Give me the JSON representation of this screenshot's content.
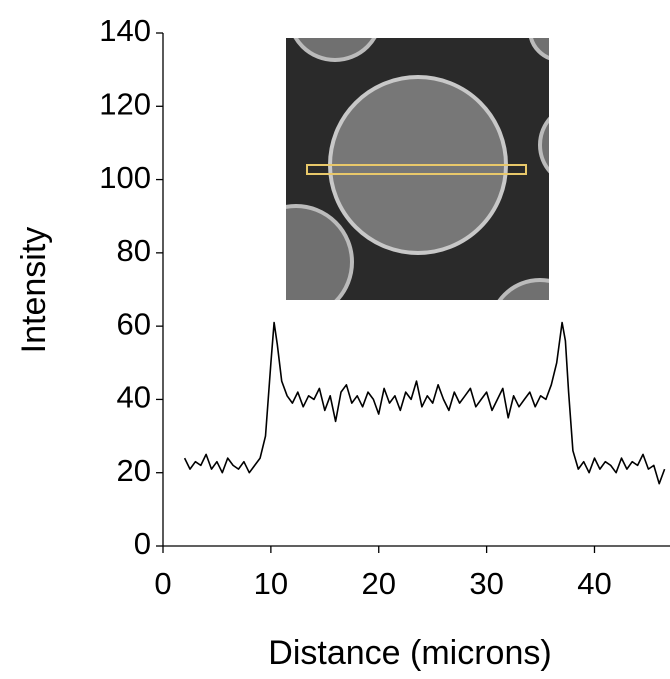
{
  "chart_data": {
    "type": "line",
    "xlabel": "Distance (microns)",
    "ylabel": "Intensity",
    "x": [
      2,
      2.5,
      3,
      3.5,
      4,
      4.5,
      5,
      5.5,
      6,
      6.5,
      7,
      7.5,
      8,
      8.5,
      9,
      9.5,
      10,
      10.3,
      10.6,
      11,
      11.5,
      12,
      12.5,
      13,
      13.5,
      14,
      14.5,
      15,
      15.5,
      16,
      16.5,
      17,
      17.5,
      18,
      18.5,
      19,
      19.5,
      20,
      20.5,
      21,
      21.5,
      22,
      22.5,
      23,
      23.5,
      24,
      24.5,
      25,
      25.5,
      26,
      26.5,
      27,
      27.5,
      28,
      28.5,
      29,
      29.5,
      30,
      30.5,
      31,
      31.5,
      32,
      32.5,
      33,
      33.5,
      34,
      34.5,
      35,
      35.5,
      36,
      36.5,
      37,
      37.3,
      37.6,
      38,
      38.5,
      39,
      39.5,
      40,
      40.5,
      41,
      41.5,
      42,
      42.5,
      43,
      43.5,
      44,
      44.5,
      45,
      45.5,
      46,
      46.5
    ],
    "series": [
      {
        "color": "#000000",
        "values": [
          24,
          21,
          23,
          22,
          25,
          21,
          23,
          20,
          24,
          22,
          21,
          23,
          20,
          22,
          24,
          30,
          50,
          61,
          55,
          45,
          41,
          39,
          42,
          38,
          41,
          40,
          43,
          37,
          41,
          34,
          42,
          44,
          39,
          41,
          38,
          42,
          40,
          36,
          43,
          39,
          41,
          37,
          42,
          40,
          45,
          38,
          41,
          39,
          44,
          40,
          37,
          42,
          39,
          41,
          43,
          38,
          40,
          42,
          37,
          40,
          43,
          35,
          41,
          38,
          40,
          42,
          38,
          41,
          40,
          44,
          50,
          61,
          56,
          42,
          26,
          21,
          23,
          20,
          24,
          21,
          23,
          22,
          20,
          24,
          21,
          23,
          22,
          25,
          21,
          22,
          17,
          21
        ]
      }
    ],
    "xlim": [
      0,
      47
    ],
    "xticks": [
      0,
      10,
      20,
      30,
      40
    ],
    "ylim": [
      0,
      140
    ],
    "yticks": [
      0,
      20,
      40,
      60,
      80,
      100,
      120,
      140
    ],
    "grid": false
  }
}
